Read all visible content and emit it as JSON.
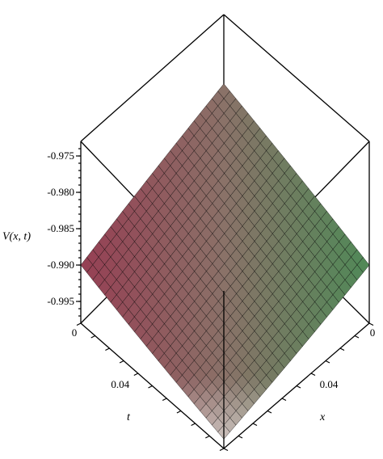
{
  "chart_data": {
    "type": "surface3d",
    "title": "",
    "zlabel": "V(x, t)",
    "xlabel": "x",
    "ylabel": "t",
    "z_ticks": [
      "-0.975",
      "-0.980",
      "-0.985",
      "-0.990",
      "-0.995"
    ],
    "z_tick_values": [
      -0.975,
      -0.98,
      -0.985,
      -0.99,
      -0.995
    ],
    "zlim": [
      -0.998,
      -0.973
    ],
    "x_tick_labels": [
      "0",
      "0.04"
    ],
    "t_tick_labels": [
      "0",
      "0.04"
    ],
    "xlim": [
      0,
      0.1
    ],
    "tlim": [
      0,
      0.1
    ],
    "surface": {
      "corner_x0_t0": -0.9835,
      "corner_x0_tmax": -0.99,
      "corner_xmax_t0": -0.99,
      "corner_xmax_tmax": -0.9965,
      "grid_size": 24
    },
    "colors": {
      "left_shade": "#a8475e",
      "right_shade": "#5a9a62",
      "mid_shade": "#8a7268",
      "low_shade": "#ffffff"
    }
  }
}
